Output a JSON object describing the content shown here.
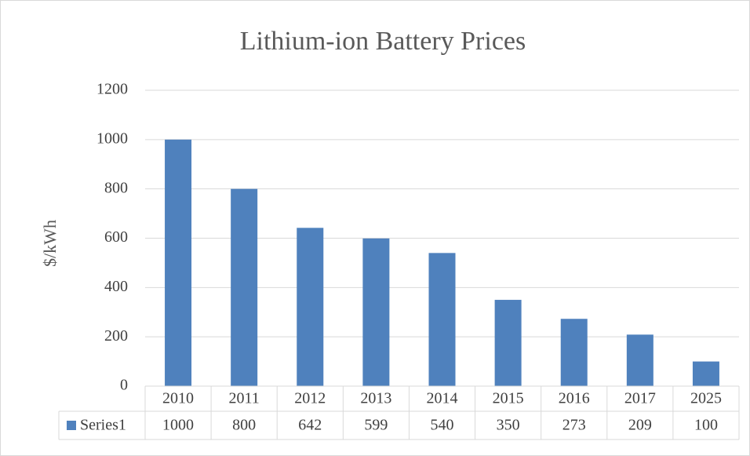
{
  "chart_data": {
    "type": "bar",
    "title": "Lithium-ion Battery Prices",
    "y_label": "$/kWh",
    "categories": [
      "2010",
      "2011",
      "2012",
      "2013",
      "2014",
      "2015",
      "2016",
      "2017",
      "2025"
    ],
    "series": [
      {
        "name": "Series1",
        "color": "#4f81bd",
        "values": [
          1000,
          800,
          642,
          599,
          540,
          350,
          273,
          209,
          100
        ]
      }
    ],
    "ylim": [
      0,
      1200
    ],
    "yticks": [
      0,
      200,
      400,
      600,
      800,
      1000,
      1200
    ],
    "grid": true,
    "data_table": true
  }
}
